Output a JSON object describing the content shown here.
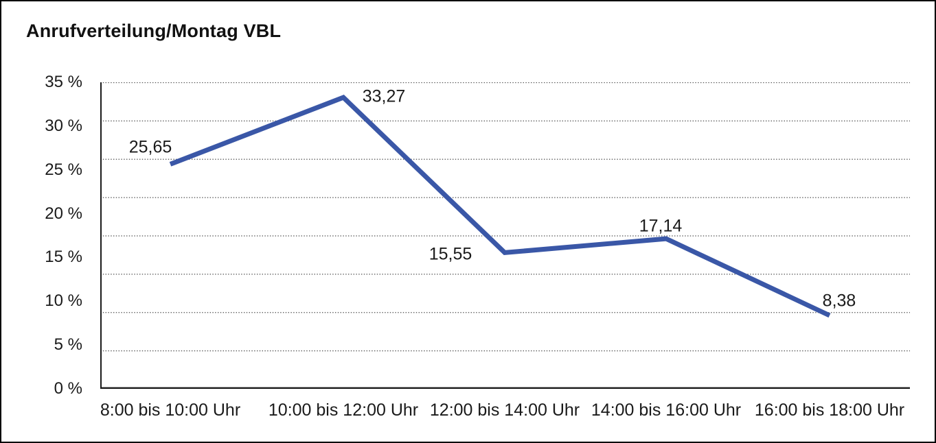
{
  "chart_data": {
    "type": "line",
    "title": "Anrufverteilung/Montag VBL",
    "categories": [
      "8:00 bis 10:00 Uhr",
      "10:00 bis 12:00 Uhr",
      "12:00 bis 14:00 Uhr",
      "14:00 bis 16:00 Uhr",
      "16:00 bis 18:00 Uhr"
    ],
    "values": [
      25.65,
      33.27,
      15.55,
      17.14,
      8.38
    ],
    "point_labels": [
      "25,65",
      "33,27",
      "15,55",
      "17,14",
      "8,38"
    ],
    "y_tick_labels": [
      "0 %",
      "5 %",
      "10 %",
      "15 %",
      "20 %",
      "25 %",
      "30 %",
      "35 %"
    ],
    "ylim": [
      0,
      35
    ],
    "y_tick_step": 5,
    "xlabel": "",
    "ylabel": "",
    "legend": "none",
    "grid": "horizontal-dotted",
    "grid_divisions": 8,
    "colors": {
      "line": "#3A57A7",
      "axis": "#1a1a1a",
      "gridline": "#4a4a4a",
      "text": "#1a1a1a",
      "background": "#ffffff",
      "frame_border": "#000000"
    }
  }
}
